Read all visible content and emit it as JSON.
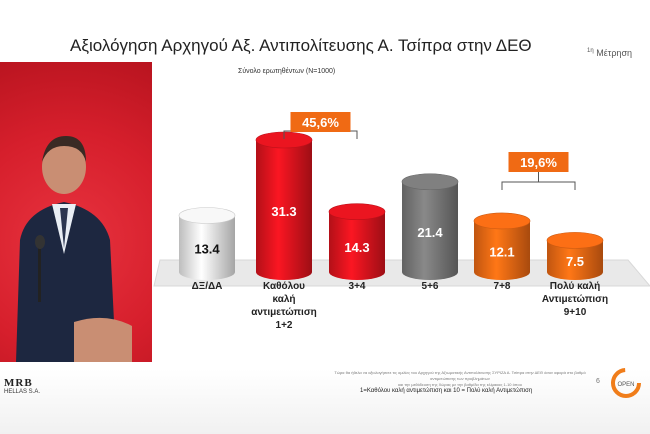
{
  "slide": {
    "title": "Αξιολόγηση Αρχηγού Αξ. Αντιπολίτευσης Α. Τσίπρα στην ΔΕΘ",
    "measure_sup": "1η",
    "measure_label": "Μέτρηση",
    "sample_note": "Σύνολο ερωτηθέντων (Ν=1000)",
    "footnote_line1": "Τώρα θα ήθελα να αξιολογήσετε τις ομιλίες του Αρχηγού της Αξιωματικής Αντιπολίτευσης ΣΥΡΙΖΑ Α. Τσίπρα στην ΔΕΘ όσον αφορά στο βαθμό αντιμετώπισης των προβλημάτων",
    "footnote_line2": "και την μεθόδευση της Χώρας με την βαθμίδα της κλίμακας 1-10 όπου",
    "scale_note": "1=Καθόλου καλή αντιμετώπιση και 10 = Πολύ καλή Αντιμετώπιση",
    "page_number": "6",
    "logo_left_main": "MRB",
    "logo_left_sub": "HELLAS S.A.",
    "logo_right": "OPEN"
  },
  "chart_data": {
    "type": "bar",
    "categories": [
      "ΔΞ/ΔΑ",
      "Καθόλου καλή αντιμετώπιση 1+2",
      "3+4",
      "5+6",
      "7+8",
      "Πολύ καλή Αντιμετώπιση 9+10"
    ],
    "category_lines": [
      [
        "ΔΞ/ΔΑ"
      ],
      [
        "Καθόλου",
        "καλή",
        "αντιμετώπιση",
        "1+2"
      ],
      [
        "3+4"
      ],
      [
        "5+6"
      ],
      [
        "7+8"
      ],
      [
        "Πολύ καλή",
        "Αντιμετώπιση",
        "9+10"
      ]
    ],
    "values": [
      13.4,
      31.3,
      14.3,
      21.4,
      12.1,
      7.5
    ],
    "value_labels": [
      "13.4",
      "31.3",
      "14.3",
      "21.4",
      "12.1",
      "7.5"
    ],
    "colors": [
      "#ececec",
      "#e0141e",
      "#e0141e",
      "#7a7a7a",
      "#f06a14",
      "#f06a14"
    ],
    "group_annotations": [
      {
        "label": "45,6%",
        "from": 1,
        "to": 2,
        "color": "#f06a14"
      },
      {
        "label": "19,6%",
        "from": 4,
        "to": 5,
        "color": "#f06a14"
      }
    ],
    "ylim": [
      0,
      35
    ],
    "grid": false,
    "legend": "none"
  }
}
